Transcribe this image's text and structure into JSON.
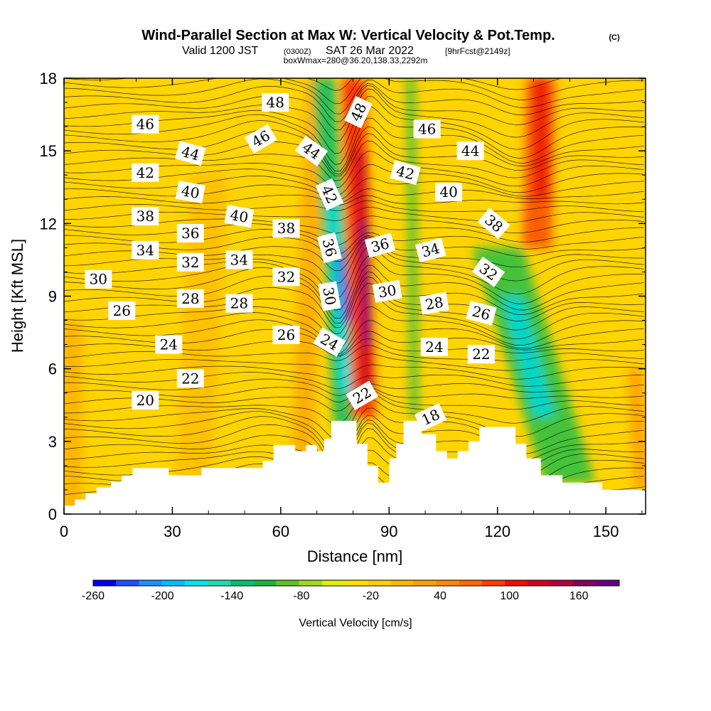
{
  "title": {
    "main": "Wind-Parallel Section at Max W: Vertical Velocity & Pot.Temp.",
    "copyright": "(C)",
    "valid_prefix": "Valid 1200 JST",
    "valid_utc": "(0300Z)",
    "valid_date": "SAT 26 Mar 2022",
    "valid_fcst": "[9hrFcst@2149z]",
    "box_info": "boxWmax=280@36.20,138.33,2292m"
  },
  "chart_data": {
    "type": "heatmap",
    "xlabel": "Distance [nm]",
    "ylabel": "Height [Kft MSL]",
    "xlim": [
      0,
      161
    ],
    "ylim": [
      0,
      18
    ],
    "x_ticks": [
      0,
      30,
      60,
      90,
      120,
      150
    ],
    "y_ticks": [
      0,
      3,
      6,
      9,
      12,
      15,
      18
    ],
    "terrain": [
      [
        0,
        0.35
      ],
      [
        3,
        0.35
      ],
      [
        3,
        0.6
      ],
      [
        6,
        0.6
      ],
      [
        6,
        0.85
      ],
      [
        9,
        0.85
      ],
      [
        9,
        1.1
      ],
      [
        13,
        1.1
      ],
      [
        13,
        1.35
      ],
      [
        16,
        1.35
      ],
      [
        16,
        1.6
      ],
      [
        19,
        1.6
      ],
      [
        19,
        1.9
      ],
      [
        29,
        1.9
      ],
      [
        29,
        1.6
      ],
      [
        38,
        1.6
      ],
      [
        38,
        1.9
      ],
      [
        55,
        1.9
      ],
      [
        55,
        2.2
      ],
      [
        58,
        2.2
      ],
      [
        58,
        2.85
      ],
      [
        64,
        2.85
      ],
      [
        64,
        2.6
      ],
      [
        67,
        2.6
      ],
      [
        67,
        2.85
      ],
      [
        70,
        2.85
      ],
      [
        70,
        2.6
      ],
      [
        72,
        2.6
      ],
      [
        72,
        3.1
      ],
      [
        74,
        3.1
      ],
      [
        74,
        3.85
      ],
      [
        81,
        3.85
      ],
      [
        81,
        2.9
      ],
      [
        84,
        2.9
      ],
      [
        84,
        2.0
      ],
      [
        87,
        2.0
      ],
      [
        87,
        1.3
      ],
      [
        90,
        1.3
      ],
      [
        90,
        2.3
      ],
      [
        92,
        2.3
      ],
      [
        92,
        2.9
      ],
      [
        94,
        2.9
      ],
      [
        94,
        3.85
      ],
      [
        99,
        3.85
      ],
      [
        99,
        3.3
      ],
      [
        103,
        3.3
      ],
      [
        103,
        2.6
      ],
      [
        106,
        2.6
      ],
      [
        106,
        2.3
      ],
      [
        109,
        2.3
      ],
      [
        109,
        2.6
      ],
      [
        112,
        2.6
      ],
      [
        112,
        3.0
      ],
      [
        115,
        3.0
      ],
      [
        115,
        3.6
      ],
      [
        125,
        3.6
      ],
      [
        125,
        2.9
      ],
      [
        128,
        2.9
      ],
      [
        128,
        2.3
      ],
      [
        132,
        2.3
      ],
      [
        132,
        1.6
      ],
      [
        138,
        1.6
      ],
      [
        138,
        1.3
      ],
      [
        149,
        1.3
      ],
      [
        149,
        1.0
      ],
      [
        161,
        1.0
      ]
    ],
    "contour_labels": [
      {
        "v": "48",
        "x": 58.5,
        "y": 17.0,
        "rot": 0
      },
      {
        "v": "48",
        "x": 81.5,
        "y": 16.6,
        "rot": -65
      },
      {
        "v": "46",
        "x": 22.5,
        "y": 16.1,
        "rot": 0
      },
      {
        "v": "46",
        "x": 54.5,
        "y": 15.5,
        "rot": -30
      },
      {
        "v": "46",
        "x": 100.5,
        "y": 15.9,
        "rot": 0
      },
      {
        "v": "44",
        "x": 35.0,
        "y": 14.9,
        "rot": 15
      },
      {
        "v": "44",
        "x": 68.5,
        "y": 15.0,
        "rot": 35
      },
      {
        "v": "44",
        "x": 112.5,
        "y": 15.0,
        "rot": 0
      },
      {
        "v": "42",
        "x": 22.5,
        "y": 14.1,
        "rot": 0
      },
      {
        "v": "42",
        "x": 94.5,
        "y": 14.1,
        "rot": 15
      },
      {
        "v": "42",
        "x": 73.5,
        "y": 13.2,
        "rot": 65
      },
      {
        "v": "40",
        "x": 35.0,
        "y": 13.3,
        "rot": 10
      },
      {
        "v": "40",
        "x": 106.5,
        "y": 13.3,
        "rot": 0
      },
      {
        "v": "40",
        "x": 48.5,
        "y": 12.3,
        "rot": 10
      },
      {
        "v": "38",
        "x": 22.5,
        "y": 12.3,
        "rot": 0
      },
      {
        "v": "38",
        "x": 61.5,
        "y": 11.8,
        "rot": 0
      },
      {
        "v": "38",
        "x": 119.0,
        "y": 12.0,
        "rot": 40
      },
      {
        "v": "36",
        "x": 35.0,
        "y": 11.6,
        "rot": 0
      },
      {
        "v": "36",
        "x": 73.5,
        "y": 11.0,
        "rot": 75
      },
      {
        "v": "36",
        "x": 87.5,
        "y": 11.1,
        "rot": -15
      },
      {
        "v": "34",
        "x": 22.5,
        "y": 10.9,
        "rot": 0
      },
      {
        "v": "34",
        "x": 48.5,
        "y": 10.5,
        "rot": 0
      },
      {
        "v": "34",
        "x": 101.5,
        "y": 10.9,
        "rot": -15
      },
      {
        "v": "32",
        "x": 35.0,
        "y": 10.4,
        "rot": 0
      },
      {
        "v": "32",
        "x": 61.5,
        "y": 9.8,
        "rot": 0
      },
      {
        "v": "32",
        "x": 117.5,
        "y": 10.0,
        "rot": 35
      },
      {
        "v": "30",
        "x": 9.5,
        "y": 9.7,
        "rot": 0
      },
      {
        "v": "30",
        "x": 73.5,
        "y": 9.0,
        "rot": 80
      },
      {
        "v": "30",
        "x": 89.5,
        "y": 9.2,
        "rot": -10
      },
      {
        "v": "28",
        "x": 35.0,
        "y": 8.9,
        "rot": 0
      },
      {
        "v": "28",
        "x": 48.5,
        "y": 8.7,
        "rot": 0
      },
      {
        "v": "28",
        "x": 102.5,
        "y": 8.7,
        "rot": -10
      },
      {
        "v": "26",
        "x": 16.0,
        "y": 8.4,
        "rot": 0
      },
      {
        "v": "26",
        "x": 61.5,
        "y": 7.4,
        "rot": 0
      },
      {
        "v": "26",
        "x": 115.5,
        "y": 8.3,
        "rot": 15
      },
      {
        "v": "24",
        "x": 29.0,
        "y": 7.0,
        "rot": 0
      },
      {
        "v": "24",
        "x": 73.5,
        "y": 7.1,
        "rot": 30
      },
      {
        "v": "24",
        "x": 102.5,
        "y": 6.9,
        "rot": 0
      },
      {
        "v": "22",
        "x": 35.0,
        "y": 5.6,
        "rot": 0
      },
      {
        "v": "22",
        "x": 115.5,
        "y": 6.6,
        "rot": 0
      },
      {
        "v": "22",
        "x": 82.5,
        "y": 4.9,
        "rot": -30
      },
      {
        "v": "20",
        "x": 22.5,
        "y": 4.7,
        "rot": 0
      },
      {
        "v": "18",
        "x": 101.5,
        "y": 4.0,
        "rot": -25
      }
    ],
    "colorbar": {
      "label": "Vertical Velocity [cm/s]",
      "tick_labels": [
        "-260",
        "-200",
        "-140",
        "-80",
        "-20",
        "40",
        "100",
        "160"
      ],
      "colors": [
        "#0000ee",
        "#1e50ff",
        "#1e90ff",
        "#00bfff",
        "#00e5ee",
        "#20dcb0",
        "#00c070",
        "#20b040",
        "#60c020",
        "#a0d820",
        "#e0f000",
        "#ffe000",
        "#ffd000",
        "#ffb800",
        "#ffa000",
        "#ff8800",
        "#ff6a00",
        "#ff3c00",
        "#ee1000",
        "#d00020",
        "#b00040",
        "#880060",
        "#660080"
      ]
    }
  }
}
